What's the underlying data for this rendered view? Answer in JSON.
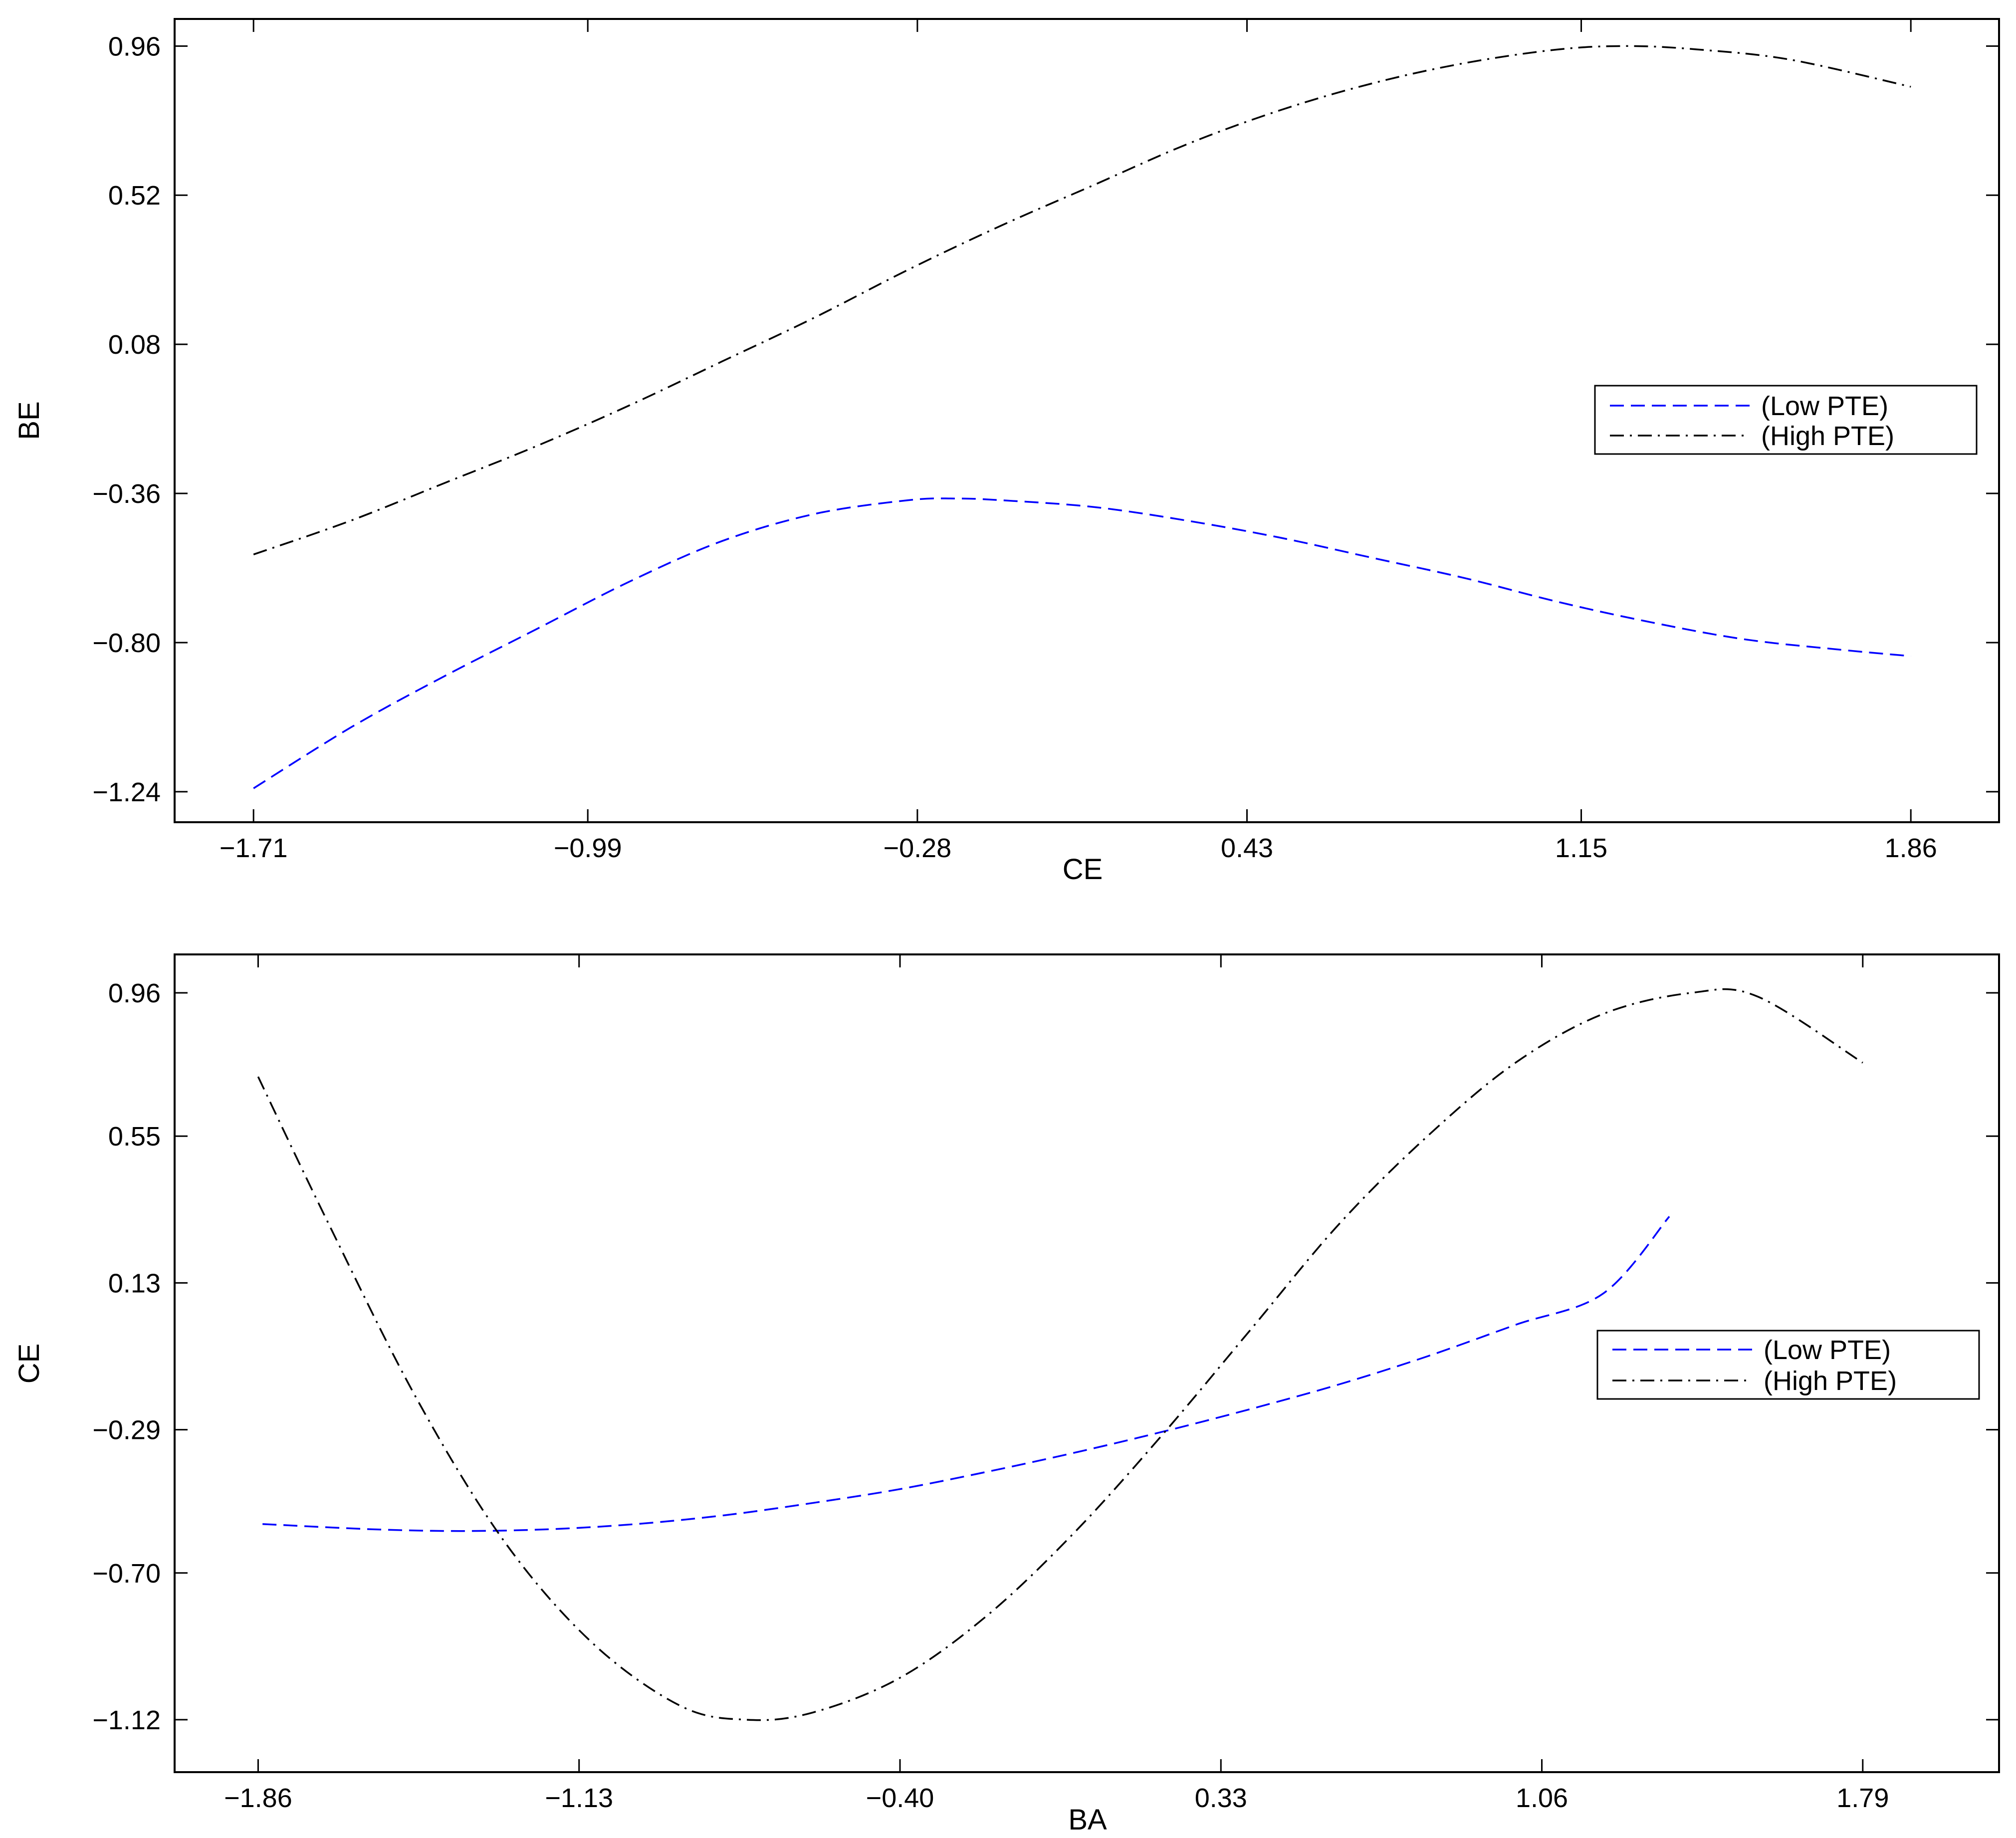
{
  "chart_data": [
    {
      "type": "line",
      "xlabel": "CE",
      "ylabel": "BE",
      "xlim": [
        -1.88,
        2.05
      ],
      "ylim": [
        -1.33,
        1.04
      ],
      "xticks": [
        "-1.71",
        "-0.99",
        "-0.28",
        "0.43",
        "1.15",
        "1.86"
      ],
      "yticks": [
        "0.96",
        "0.52",
        "0.08",
        "-0.36",
        "-0.80",
        "-1.24"
      ],
      "grid": false,
      "legend_position": "right",
      "series": [
        {
          "name": "(Low PTE)",
          "style": "dashed",
          "color": "#0000ff",
          "x": [
            -1.71,
            -1.5,
            -1.3,
            -1.1,
            -0.9,
            -0.7,
            -0.5,
            -0.3,
            -0.2,
            -0.1,
            0.1,
            0.3,
            0.5,
            0.7,
            0.9,
            1.1,
            1.3,
            1.5,
            1.7,
            1.86
          ],
          "y": [
            -1.23,
            -1.05,
            -0.9,
            -0.76,
            -0.62,
            -0.5,
            -0.42,
            -0.38,
            -0.375,
            -0.38,
            -0.4,
            -0.44,
            -0.49,
            -0.55,
            -0.61,
            -0.68,
            -0.74,
            -0.79,
            -0.82,
            -0.84
          ]
        },
        {
          "name": "(High PTE)",
          "style": "dashdot",
          "color": "#000000",
          "x": [
            -1.71,
            -1.5,
            -1.3,
            -1.1,
            -0.9,
            -0.7,
            -0.5,
            -0.3,
            -0.1,
            0.1,
            0.3,
            0.5,
            0.7,
            0.9,
            1.1,
            1.25,
            1.4,
            1.6,
            1.86
          ],
          "y": [
            -0.54,
            -0.44,
            -0.33,
            -0.22,
            -0.1,
            0.03,
            0.16,
            0.3,
            0.43,
            0.55,
            0.67,
            0.77,
            0.85,
            0.91,
            0.95,
            0.96,
            0.95,
            0.92,
            0.84
          ]
        }
      ]
    },
    {
      "type": "line",
      "xlabel": "BA",
      "ylabel": "CE",
      "xlim": [
        -2.05,
        2.1
      ],
      "ylim": [
        -1.27,
        1.07
      ],
      "xticks": [
        "-1.86",
        "-1.13",
        "-0.40",
        "0.33",
        "1.06",
        "1.79"
      ],
      "yticks": [
        "0.96",
        "0.55",
        "0.13",
        "-0.29",
        "-0.70",
        "-1.12"
      ],
      "grid": false,
      "legend_position": "right",
      "series": [
        {
          "name": "(Low PTE)",
          "style": "dashed",
          "color": "#0000ff",
          "x": [
            -1.85,
            -1.6,
            -1.4,
            -1.2,
            -1.0,
            -0.8,
            -0.6,
            -0.4,
            -0.2,
            0.0,
            0.2,
            0.4,
            0.6,
            0.8,
            1.0,
            1.2,
            1.35
          ],
          "y": [
            -0.56,
            -0.575,
            -0.58,
            -0.575,
            -0.56,
            -0.535,
            -0.5,
            -0.46,
            -0.41,
            -0.355,
            -0.295,
            -0.23,
            -0.16,
            -0.08,
            0.01,
            0.1,
            0.32
          ]
        },
        {
          "name": "(High PTE)",
          "style": "dashdot",
          "color": "#000000",
          "x": [
            -1.86,
            -1.7,
            -1.5,
            -1.3,
            -1.1,
            -0.9,
            -0.75,
            -0.6,
            -0.4,
            -0.2,
            0.0,
            0.2,
            0.4,
            0.6,
            0.8,
            1.0,
            1.2,
            1.4,
            1.55,
            1.79
          ],
          "y": [
            0.72,
            0.3,
            -0.2,
            -0.61,
            -0.9,
            -1.08,
            -1.12,
            -1.1,
            -1.0,
            -0.82,
            -0.58,
            -0.3,
            0.0,
            0.3,
            0.55,
            0.76,
            0.9,
            0.96,
            0.95,
            0.76
          ]
        }
      ]
    }
  ]
}
